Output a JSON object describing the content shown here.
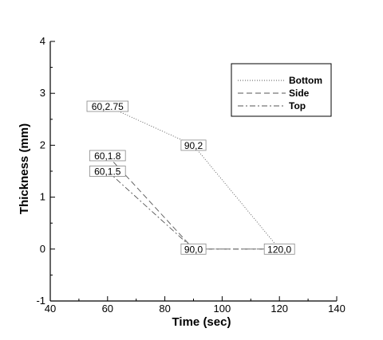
{
  "chart_data": {
    "type": "line",
    "xlabel": "Time (sec)",
    "ylabel": "Thickness (mm)",
    "xlim": [
      40,
      140
    ],
    "ylim": [
      -1,
      4
    ],
    "xticks": [
      40,
      60,
      80,
      100,
      120,
      140
    ],
    "yticks": [
      -1,
      0,
      1,
      2,
      3,
      4
    ],
    "legend_position": "top-right",
    "series": [
      {
        "name": "Bottom",
        "x": [
          60,
          90,
          120
        ],
        "y": [
          2.75,
          2,
          0
        ],
        "dash": "1,2",
        "color": "#555555"
      },
      {
        "name": "Side",
        "x": [
          60,
          90,
          120
        ],
        "y": [
          1.8,
          0,
          0
        ],
        "dash": "7,4",
        "color": "#555555"
      },
      {
        "name": "Top",
        "x": [
          60,
          90,
          120
        ],
        "y": [
          1.5,
          0,
          0
        ],
        "dash": "7,3,2,3",
        "color": "#555555"
      }
    ],
    "annotations": [
      {
        "text": "60,2.75",
        "x": 60,
        "y": 2.75
      },
      {
        "text": "90,2",
        "x": 90,
        "y": 2
      },
      {
        "text": "60,1.8",
        "x": 60,
        "y": 1.8
      },
      {
        "text": "60,1.5",
        "x": 60,
        "y": 1.5
      },
      {
        "text": "90,0",
        "x": 90,
        "y": 0
      },
      {
        "text": "120,0",
        "x": 120,
        "y": 0
      }
    ]
  }
}
